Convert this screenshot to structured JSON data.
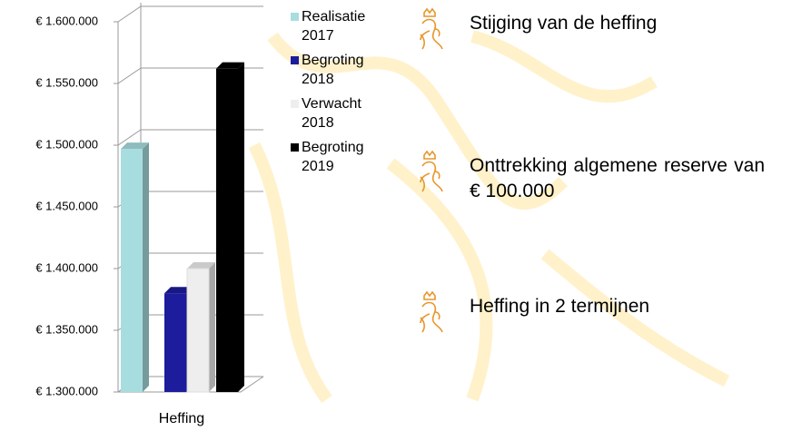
{
  "chart_data": {
    "type": "bar3d",
    "categories": [
      "Heffing"
    ],
    "series": [
      {
        "name": "Realisatie 2017",
        "color": "#a8dde0",
        "values": [
          1497000
        ]
      },
      {
        "name": "Begroting 2018",
        "color": "#1c1c9c",
        "values": [
          1380000
        ]
      },
      {
        "name": "Verwacht 2018",
        "color": "#eeeeee",
        "values": [
          1400000
        ]
      },
      {
        "name": "Begroting 2019",
        "color": "#000000",
        "values": [
          1562000
        ]
      }
    ],
    "ylim": [
      1300000,
      1600000
    ],
    "yticks": [
      {
        "value": 1300000,
        "label": "€ 1.300.000"
      },
      {
        "value": 1350000,
        "label": "€ 1.350.000"
      },
      {
        "value": 1400000,
        "label": "€ 1.400.000"
      },
      {
        "value": 1450000,
        "label": "€ 1.450.000"
      },
      {
        "value": 1500000,
        "label": "€ 1.500.000"
      },
      {
        "value": 1550000,
        "label": "€ 1.550.000"
      },
      {
        "value": 1600000,
        "label": "€ 1.600.000"
      }
    ],
    "grid": true
  },
  "bullets": [
    "Stijging van de heffing",
    "Onttrekking algemene reserve van  € 100.000",
    "Heffing in 2 termijnen"
  ]
}
